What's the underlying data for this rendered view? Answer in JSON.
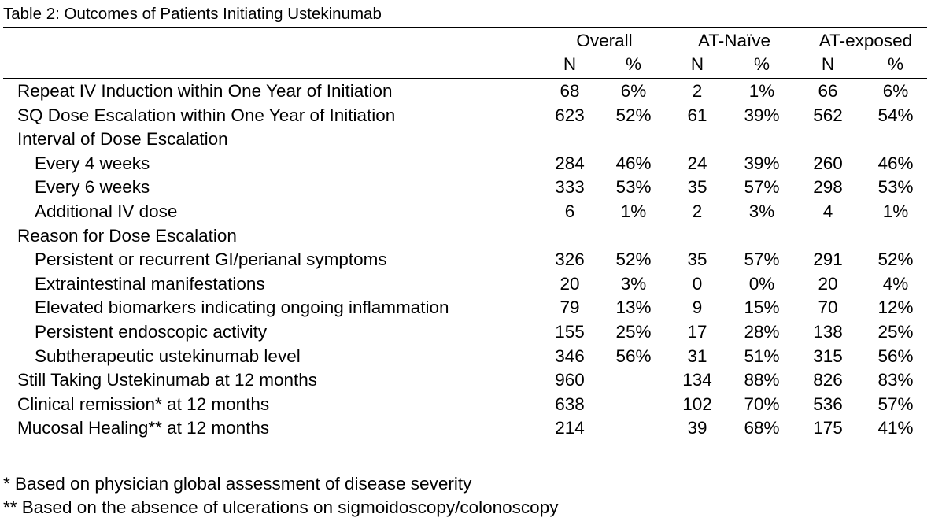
{
  "caption": "Table 2: Outcomes of Patients Initiating Ustekinumab",
  "groups": [
    "Overall",
    "AT-Naïve",
    "AT-exposed"
  ],
  "subheaders": [
    "N",
    "%",
    "N",
    "%",
    "N",
    "%"
  ],
  "rows": [
    {
      "label": "Repeat IV Induction within One Year of Initiation",
      "indent": 0,
      "values": [
        "68",
        "6%",
        "2",
        "1%",
        "66",
        "6%"
      ]
    },
    {
      "label": "SQ Dose Escalation within One Year of Initiation",
      "indent": 0,
      "values": [
        "623",
        "52%",
        "61",
        "39%",
        "562",
        "54%"
      ]
    },
    {
      "label": "Interval of Dose Escalation",
      "indent": 0,
      "values": [
        "",
        "",
        "",
        "",
        "",
        ""
      ]
    },
    {
      "label": "Every 4 weeks",
      "indent": 1,
      "values": [
        "284",
        "46%",
        "24",
        "39%",
        "260",
        "46%"
      ]
    },
    {
      "label": "Every 6 weeks",
      "indent": 1,
      "values": [
        "333",
        "53%",
        "35",
        "57%",
        "298",
        "53%"
      ]
    },
    {
      "label": "Additional IV dose",
      "indent": 1,
      "values": [
        "6",
        "1%",
        "2",
        "3%",
        "4",
        "1%"
      ]
    },
    {
      "label": "Reason for Dose Escalation",
      "indent": 0,
      "values": [
        "",
        "",
        "",
        "",
        "",
        ""
      ]
    },
    {
      "label": "Persistent or recurrent GI/perianal symptoms",
      "indent": 1,
      "values": [
        "326",
        "52%",
        "35",
        "57%",
        "291",
        "52%"
      ]
    },
    {
      "label": "Extraintestinal manifestations",
      "indent": 1,
      "values": [
        "20",
        "3%",
        "0",
        "0%",
        "20",
        "4%"
      ]
    },
    {
      "label": "Elevated biomarkers indicating ongoing inflammation",
      "indent": 1,
      "values": [
        "79",
        "13%",
        "9",
        "15%",
        "70",
        "12%"
      ]
    },
    {
      "label": "Persistent endoscopic activity",
      "indent": 1,
      "values": [
        "155",
        "25%",
        "17",
        "28%",
        "138",
        "25%"
      ]
    },
    {
      "label": "Subtherapeutic ustekinumab level",
      "indent": 1,
      "values": [
        "346",
        "56%",
        "31",
        "51%",
        "315",
        "56%"
      ]
    },
    {
      "label": "Still Taking Ustekinumab at 12 months",
      "indent": 0,
      "values": [
        "960",
        "",
        "134",
        "88%",
        "826",
        "83%"
      ]
    },
    {
      "label": "Clinical remission* at 12 months",
      "indent": 0,
      "values": [
        "638",
        "",
        "102",
        "70%",
        "536",
        "57%"
      ]
    },
    {
      "label": "Mucosal Healing** at 12 months",
      "indent": 0,
      "values": [
        "214",
        "",
        "39",
        "68%",
        "175",
        "41%"
      ]
    }
  ],
  "footnotes": [
    "* Based on physician global assessment of disease severity",
    "** Based on the absence of ulcerations on sigmoidoscopy/colonoscopy"
  ]
}
